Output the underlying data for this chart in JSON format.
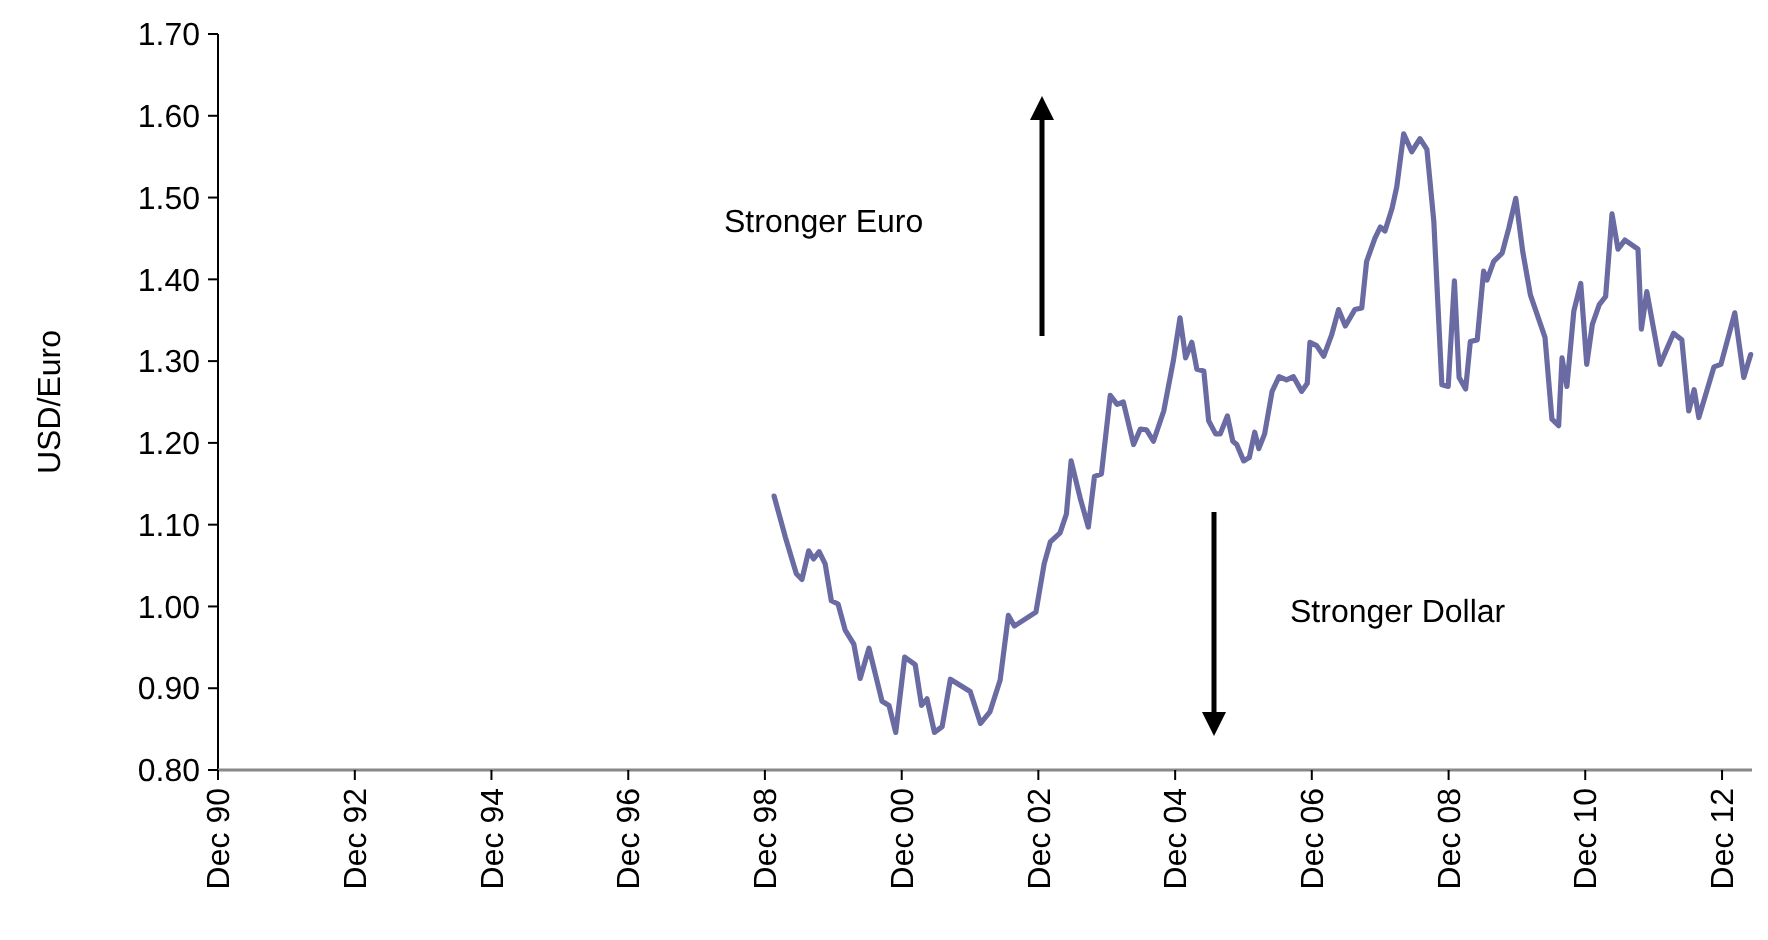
{
  "chart_data": {
    "type": "line",
    "ylabel": "USD/Euro",
    "annotations": [
      "Stronger Euro",
      "Stronger Dollar"
    ],
    "x": [
      "1999-01-19",
      "1999-03-20",
      "1999-05-18",
      "1999-06-17",
      "1999-07-23",
      "1999-08-18",
      "1999-09-17",
      "1999-10-19",
      "1999-11-21",
      "1999-12-27",
      "2000-02-03",
      "2000-03-20",
      "2000-04-23",
      "2000-06-09",
      "2000-08-18",
      "2000-09-24",
      "2000-10-30",
      "2000-12-17",
      "2001-02-11",
      "2001-03-17",
      "2001-04-15",
      "2001-05-25",
      "2001-07-05",
      "2001-08-18",
      "2001-12-02",
      "2002-01-26",
      "2002-03-17",
      "2002-05-11",
      "2002-06-24",
      "2002-07-26",
      "2002-11-18",
      "2003-01-01",
      "2003-02-03",
      "2003-03-27",
      "2003-04-30",
      "2003-05-25",
      "2003-07-12",
      "2003-08-25",
      "2003-09-27",
      "2003-11-03",
      "2003-12-20",
      "2004-01-26",
      "2004-02-28",
      "2004-04-23",
      "2004-05-29",
      "2004-07-01",
      "2004-08-07",
      "2004-10-01",
      "2004-11-21",
      "2004-12-27",
      "2005-01-26",
      "2005-02-28",
      "2005-03-27",
      "2005-05-03",
      "2005-05-29",
      "2005-07-05",
      "2005-07-30",
      "2005-09-06",
      "2005-10-05",
      "2005-10-26",
      "2005-12-02",
      "2006-01-01",
      "2006-01-30",
      "2006-02-21",
      "2006-03-24",
      "2006-05-03",
      "2006-06-09",
      "2006-07-19",
      "2006-08-25",
      "2006-10-08",
      "2006-11-07",
      "2006-11-21",
      "2006-12-27",
      "2007-02-03",
      "2007-03-17",
      "2007-04-23",
      "2007-05-29",
      "2007-07-19",
      "2007-08-25",
      "2007-09-20",
      "2007-11-03",
      "2007-12-02",
      "2007-12-27",
      "2008-02-03",
      "2008-02-28",
      "2008-04-05",
      "2008-05-18",
      "2008-07-01",
      "2008-08-07",
      "2008-09-13",
      "2008-10-26",
      "2008-11-29",
      "2009-01-01",
      "2009-01-26",
      "2009-03-02",
      "2009-03-27",
      "2009-05-03",
      "2009-06-06",
      "2009-06-24",
      "2009-07-30",
      "2009-09-13",
      "2009-10-19",
      "2009-11-25",
      "2010-01-01",
      "2010-02-11",
      "2010-04-30",
      "2010-06-06",
      "2010-07-12",
      "2010-07-30",
      "2010-08-25",
      "2010-10-01",
      "2010-11-07",
      "2010-12-09",
      "2011-01-08",
      "2011-02-14",
      "2011-03-20",
      "2011-04-23",
      "2011-05-25",
      "2011-07-01",
      "2011-09-09",
      "2011-09-27",
      "2011-10-26",
      "2012-01-05",
      "2012-03-17",
      "2012-04-30",
      "2012-06-06",
      "2012-07-05",
      "2012-07-30",
      "2012-10-19",
      "2012-11-25",
      "2013-02-07",
      "2013-03-27",
      "2013-05-03"
    ],
    "series": [
      {
        "color": "#6b6ba3",
        "values": [
          1.135,
          1.085,
          1.04,
          1.033,
          1.068,
          1.058,
          1.067,
          1.052,
          1.007,
          1.003,
          0.971,
          0.954,
          0.912,
          0.949,
          0.884,
          0.879,
          0.846,
          0.938,
          0.929,
          0.879,
          0.887,
          0.846,
          0.853,
          0.911,
          0.896,
          0.857,
          0.871,
          0.91,
          0.989,
          0.976,
          0.993,
          1.052,
          1.079,
          1.09,
          1.113,
          1.178,
          1.133,
          1.097,
          1.159,
          1.162,
          1.258,
          1.247,
          1.25,
          1.198,
          1.217,
          1.216,
          1.202,
          1.239,
          1.3,
          1.353,
          1.304,
          1.323,
          1.29,
          1.288,
          1.227,
          1.211,
          1.211,
          1.233,
          1.202,
          1.198,
          1.178,
          1.182,
          1.213,
          1.193,
          1.211,
          1.263,
          1.281,
          1.277,
          1.281,
          1.263,
          1.273,
          1.323,
          1.319,
          1.306,
          1.332,
          1.363,
          1.343,
          1.363,
          1.365,
          1.422,
          1.45,
          1.464,
          1.459,
          1.487,
          1.513,
          1.578,
          1.556,
          1.572,
          1.559,
          1.471,
          1.271,
          1.269,
          1.398,
          1.28,
          1.266,
          1.324,
          1.326,
          1.41,
          1.399,
          1.422,
          1.432,
          1.463,
          1.499,
          1.434,
          1.381,
          1.329,
          1.229,
          1.221,
          1.304,
          1.269,
          1.361,
          1.395,
          1.296,
          1.345,
          1.369,
          1.379,
          1.48,
          1.437,
          1.448,
          1.437,
          1.339,
          1.385,
          1.296,
          1.334,
          1.326,
          1.239,
          1.265,
          1.231,
          1.293,
          1.296,
          1.359,
          1.28,
          1.308
        ]
      }
    ],
    "xlim": [
      "1990-12-01",
      "2013-05-10"
    ],
    "xticks": [
      {
        "value": "1990-12-01",
        "label": "Dec 90"
      },
      {
        "value": "1992-12-01",
        "label": "Dec 92"
      },
      {
        "value": "1994-12-01",
        "label": "Dec 94"
      },
      {
        "value": "1996-12-01",
        "label": "Dec 96"
      },
      {
        "value": "1998-12-01",
        "label": "Dec 98"
      },
      {
        "value": "2000-12-01",
        "label": "Dec 00"
      },
      {
        "value": "2002-12-01",
        "label": "Dec 02"
      },
      {
        "value": "2004-12-01",
        "label": "Dec 04"
      },
      {
        "value": "2006-12-01",
        "label": "Dec 06"
      },
      {
        "value": "2008-12-01",
        "label": "Dec 08"
      },
      {
        "value": "2010-12-01",
        "label": "Dec 10"
      },
      {
        "value": "2012-12-01",
        "label": "Dec 12"
      }
    ],
    "ylim": [
      0.8,
      1.7
    ],
    "yticks": [
      {
        "value": 0.8,
        "label": "0.80"
      },
      {
        "value": 0.9,
        "label": "0.90"
      },
      {
        "value": 1.0,
        "label": "1.00"
      },
      {
        "value": 1.1,
        "label": "1.10"
      },
      {
        "value": 1.2,
        "label": "1.20"
      },
      {
        "value": 1.3,
        "label": "1.30"
      },
      {
        "value": 1.4,
        "label": "1.40"
      },
      {
        "value": 1.5,
        "label": "1.50"
      },
      {
        "value": 1.6,
        "label": "1.60"
      },
      {
        "value": 1.7,
        "label": "1.70"
      }
    ],
    "grid": false,
    "marker": "none",
    "line_style": "solid"
  }
}
